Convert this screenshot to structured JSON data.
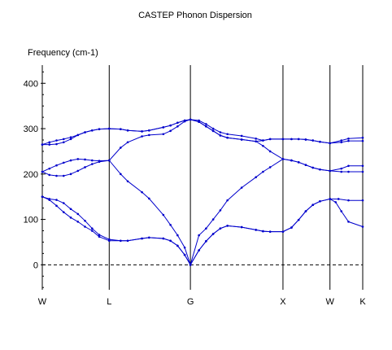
{
  "chart_data": {
    "type": "line",
    "title": "CASTEP Phonon Dispersion",
    "ylabel": "Frequency (cm-1)",
    "xlabel": "",
    "ylim": [
      -55,
      440
    ],
    "yticks": [
      0,
      100,
      200,
      300,
      400
    ],
    "xlim": [
      0,
      2.25
    ],
    "kpoints": [
      {
        "label": "W",
        "x": 0
      },
      {
        "label": "L",
        "x": 0.47
      },
      {
        "label": "G",
        "x": 1.04
      },
      {
        "label": "X",
        "x": 1.69
      },
      {
        "label": "W",
        "x": 2.02
      },
      {
        "label": "K",
        "x": 2.25
      }
    ],
    "zero_line": "dashed",
    "line_color": "#0000cc",
    "series": [
      {
        "values": [
          [
            0,
            150
          ],
          [
            0.05,
            143
          ],
          [
            0.1,
            130
          ],
          [
            0.15,
            116
          ],
          [
            0.2,
            104
          ],
          [
            0.25,
            95
          ],
          [
            0.3,
            84
          ],
          [
            0.35,
            75
          ],
          [
            0.4,
            62
          ],
          [
            0.47,
            53
          ],
          [
            0.55,
            53
          ],
          [
            0.6,
            53
          ],
          [
            0.7,
            58
          ],
          [
            0.75,
            60
          ],
          [
            0.85,
            58
          ],
          [
            0.9,
            53
          ],
          [
            0.95,
            42
          ],
          [
            1.0,
            22
          ],
          [
            1.04,
            0
          ],
          [
            1.1,
            32
          ],
          [
            1.15,
            52
          ],
          [
            1.2,
            68
          ],
          [
            1.25,
            80
          ],
          [
            1.3,
            86
          ],
          [
            1.4,
            83
          ],
          [
            1.5,
            77
          ],
          [
            1.55,
            74
          ],
          [
            1.6,
            73
          ],
          [
            1.69,
            73
          ],
          [
            1.75,
            82
          ],
          [
            1.8,
            99
          ],
          [
            1.85,
            118
          ],
          [
            1.9,
            132
          ],
          [
            1.95,
            140
          ],
          [
            2.02,
            145
          ],
          [
            2.08,
            145
          ],
          [
            2.15,
            142
          ],
          [
            2.25,
            142
          ]
        ]
      },
      {
        "values": [
          [
            0,
            150
          ],
          [
            0.05,
            145
          ],
          [
            0.1,
            143
          ],
          [
            0.15,
            136
          ],
          [
            0.2,
            123
          ],
          [
            0.25,
            112
          ],
          [
            0.3,
            97
          ],
          [
            0.35,
            80
          ],
          [
            0.4,
            66
          ],
          [
            0.47,
            56
          ],
          [
            0.55,
            53
          ],
          [
            0.6,
            53
          ],
          [
            0.7,
            58
          ],
          [
            0.75,
            60
          ],
          [
            0.85,
            58
          ],
          [
            0.9,
            53
          ],
          [
            0.95,
            42
          ],
          [
            1.0,
            22
          ],
          [
            1.04,
            0
          ],
          [
            1.1,
            32
          ],
          [
            1.15,
            52
          ],
          [
            1.2,
            68
          ],
          [
            1.25,
            80
          ],
          [
            1.3,
            86
          ],
          [
            1.4,
            83
          ],
          [
            1.5,
            77
          ],
          [
            1.55,
            74
          ],
          [
            1.6,
            73
          ],
          [
            1.69,
            73
          ],
          [
            1.75,
            82
          ],
          [
            1.8,
            99
          ],
          [
            1.85,
            118
          ],
          [
            1.9,
            132
          ],
          [
            1.95,
            140
          ],
          [
            2.02,
            145
          ],
          [
            2.06,
            138
          ],
          [
            2.1,
            118
          ],
          [
            2.15,
            95
          ],
          [
            2.25,
            84
          ]
        ]
      },
      {
        "values": [
          [
            0,
            205
          ],
          [
            0.05,
            198
          ],
          [
            0.1,
            196
          ],
          [
            0.15,
            196
          ],
          [
            0.2,
            200
          ],
          [
            0.25,
            207
          ],
          [
            0.3,
            215
          ],
          [
            0.35,
            222
          ],
          [
            0.4,
            227
          ],
          [
            0.47,
            230
          ],
          [
            0.55,
            200
          ],
          [
            0.6,
            184
          ],
          [
            0.7,
            160
          ],
          [
            0.75,
            146
          ],
          [
            0.85,
            110
          ],
          [
            0.9,
            88
          ],
          [
            0.95,
            65
          ],
          [
            1.0,
            38
          ],
          [
            1.04,
            0
          ],
          [
            1.1,
            65
          ],
          [
            1.15,
            80
          ],
          [
            1.2,
            100
          ],
          [
            1.25,
            120
          ],
          [
            1.3,
            142
          ],
          [
            1.4,
            170
          ],
          [
            1.5,
            193
          ],
          [
            1.55,
            205
          ],
          [
            1.6,
            215
          ],
          [
            1.69,
            233
          ],
          [
            1.75,
            230
          ],
          [
            1.8,
            226
          ],
          [
            1.85,
            220
          ],
          [
            1.9,
            214
          ],
          [
            1.95,
            210
          ],
          [
            2.02,
            207
          ],
          [
            2.1,
            205
          ],
          [
            2.15,
            205
          ],
          [
            2.25,
            205
          ]
        ]
      },
      {
        "values": [
          [
            0,
            205
          ],
          [
            0.05,
            212
          ],
          [
            0.1,
            219
          ],
          [
            0.15,
            225
          ],
          [
            0.2,
            230
          ],
          [
            0.25,
            233
          ],
          [
            0.3,
            232
          ],
          [
            0.35,
            230
          ],
          [
            0.4,
            229
          ],
          [
            0.47,
            230
          ],
          [
            0.55,
            258
          ],
          [
            0.6,
            270
          ],
          [
            0.7,
            283
          ],
          [
            0.75,
            286
          ],
          [
            0.85,
            288
          ],
          [
            0.9,
            295
          ],
          [
            0.95,
            305
          ],
          [
            1.0,
            316
          ],
          [
            1.04,
            320
          ],
          [
            1.1,
            315
          ],
          [
            1.15,
            305
          ],
          [
            1.2,
            295
          ],
          [
            1.25,
            285
          ],
          [
            1.3,
            280
          ],
          [
            1.4,
            276
          ],
          [
            1.5,
            272
          ],
          [
            1.55,
            262
          ],
          [
            1.6,
            250
          ],
          [
            1.69,
            233
          ],
          [
            1.75,
            230
          ],
          [
            1.8,
            226
          ],
          [
            1.85,
            220
          ],
          [
            1.9,
            214
          ],
          [
            1.95,
            210
          ],
          [
            2.02,
            207
          ],
          [
            2.1,
            212
          ],
          [
            2.15,
            218
          ],
          [
            2.25,
            218
          ]
        ]
      },
      {
        "values": [
          [
            0,
            265
          ],
          [
            0.05,
            270
          ],
          [
            0.1,
            274
          ],
          [
            0.15,
            277
          ],
          [
            0.2,
            281
          ],
          [
            0.25,
            286
          ],
          [
            0.3,
            292
          ],
          [
            0.35,
            296
          ],
          [
            0.4,
            299
          ],
          [
            0.47,
            300
          ],
          [
            0.55,
            299
          ],
          [
            0.6,
            296
          ],
          [
            0.7,
            294
          ],
          [
            0.75,
            296
          ],
          [
            0.85,
            303
          ],
          [
            0.9,
            307
          ],
          [
            0.95,
            313
          ],
          [
            1.0,
            318
          ],
          [
            1.04,
            320
          ],
          [
            1.1,
            315
          ],
          [
            1.15,
            305
          ],
          [
            1.2,
            295
          ],
          [
            1.25,
            285
          ],
          [
            1.3,
            280
          ],
          [
            1.4,
            276
          ],
          [
            1.5,
            272
          ],
          [
            1.55,
            274
          ],
          [
            1.6,
            277
          ],
          [
            1.69,
            277
          ],
          [
            1.75,
            277
          ],
          [
            1.8,
            277
          ],
          [
            1.85,
            276
          ],
          [
            1.9,
            274
          ],
          [
            1.95,
            271
          ],
          [
            2.02,
            268
          ],
          [
            2.1,
            270
          ],
          [
            2.15,
            273
          ],
          [
            2.25,
            273
          ]
        ]
      },
      {
        "values": [
          [
            0,
            265
          ],
          [
            0.05,
            265
          ],
          [
            0.1,
            266
          ],
          [
            0.15,
            270
          ],
          [
            0.2,
            277
          ],
          [
            0.25,
            286
          ],
          [
            0.3,
            292
          ],
          [
            0.35,
            296
          ],
          [
            0.4,
            299
          ],
          [
            0.47,
            300
          ],
          [
            0.55,
            299
          ],
          [
            0.6,
            296
          ],
          [
            0.7,
            294
          ],
          [
            0.75,
            296
          ],
          [
            0.85,
            303
          ],
          [
            0.9,
            307
          ],
          [
            0.95,
            313
          ],
          [
            1.0,
            318
          ],
          [
            1.04,
            320
          ],
          [
            1.1,
            318
          ],
          [
            1.15,
            310
          ],
          [
            1.2,
            300
          ],
          [
            1.25,
            292
          ],
          [
            1.3,
            288
          ],
          [
            1.4,
            284
          ],
          [
            1.5,
            278
          ],
          [
            1.55,
            274
          ],
          [
            1.6,
            277
          ],
          [
            1.69,
            277
          ],
          [
            1.75,
            277
          ],
          [
            1.8,
            277
          ],
          [
            1.85,
            276
          ],
          [
            1.9,
            274
          ],
          [
            1.95,
            271
          ],
          [
            2.02,
            268
          ],
          [
            2.1,
            274
          ],
          [
            2.15,
            278
          ],
          [
            2.25,
            280
          ]
        ]
      }
    ]
  }
}
